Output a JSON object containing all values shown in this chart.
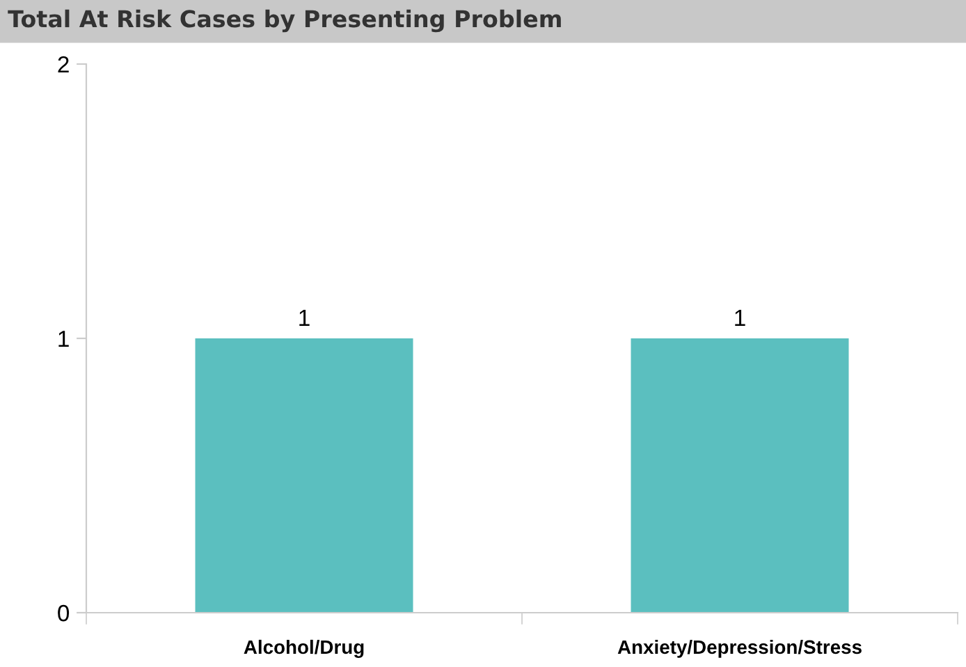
{
  "chart_data": {
    "type": "bar",
    "title": "Total At Risk Cases by Presenting Problem",
    "categories": [
      "Alcohol/Drug",
      "Anxiety/Depression/Stress"
    ],
    "values": [
      1,
      1
    ],
    "color": "#5bbfbf",
    "ylim": [
      0,
      2
    ],
    "yticks": [
      0,
      1,
      2
    ],
    "grid": false,
    "data_labels": true
  }
}
